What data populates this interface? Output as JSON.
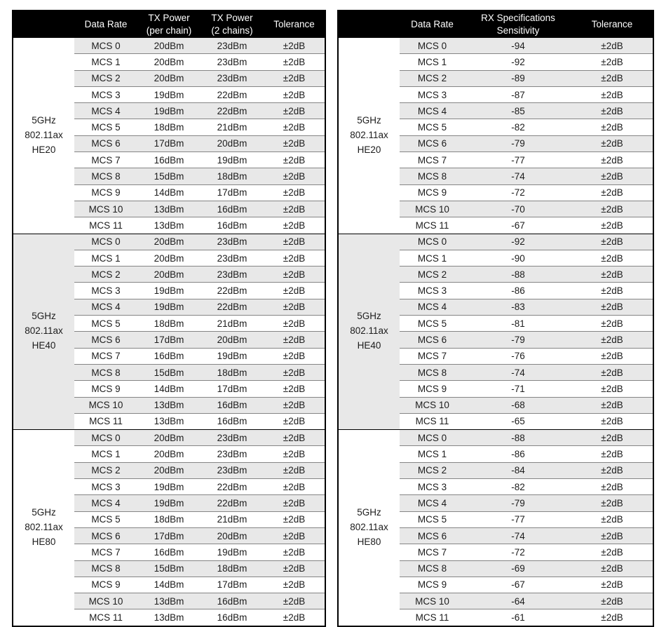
{
  "colors": {
    "header_bg": "#000000",
    "header_text": "#ffffff",
    "stripe": "#e8e8e8",
    "row_line": "#858585",
    "border": "#000000",
    "text": "#1c1c1c"
  },
  "tx_table": {
    "header": [
      "",
      "Data Rate",
      "TX Power\n(per chain)",
      "TX Power\n(2 chains)",
      "Tolerance"
    ],
    "groups": [
      {
        "band": "5GHz\n802.11ax\nHE20",
        "rows": [
          [
            "MCS 0",
            "20dBm",
            "23dBm",
            "±2dB"
          ],
          [
            "MCS 1",
            "20dBm",
            "23dBm",
            "±2dB"
          ],
          [
            "MCS 2",
            "20dBm",
            "23dBm",
            "±2dB"
          ],
          [
            "MCS 3",
            "19dBm",
            "22dBm",
            "±2dB"
          ],
          [
            "MCS 4",
            "19dBm",
            "22dBm",
            "±2dB"
          ],
          [
            "MCS 5",
            "18dBm",
            "21dBm",
            "±2dB"
          ],
          [
            "MCS 6",
            "17dBm",
            "20dBm",
            "±2dB"
          ],
          [
            "MCS 7",
            "16dBm",
            "19dBm",
            "±2dB"
          ],
          [
            "MCS 8",
            "15dBm",
            "18dBm",
            "±2dB"
          ],
          [
            "MCS 9",
            "14dBm",
            "17dBm",
            "±2dB"
          ],
          [
            "MCS 10",
            "13dBm",
            "16dBm",
            "±2dB"
          ],
          [
            "MCS 11",
            "13dBm",
            "16dBm",
            "±2dB"
          ]
        ]
      },
      {
        "band": "5GHz\n802.11ax\nHE40",
        "rows": [
          [
            "MCS 0",
            "20dBm",
            "23dBm",
            "±2dB"
          ],
          [
            "MCS 1",
            "20dBm",
            "23dBm",
            "±2dB"
          ],
          [
            "MCS 2",
            "20dBm",
            "23dBm",
            "±2dB"
          ],
          [
            "MCS 3",
            "19dBm",
            "22dBm",
            "±2dB"
          ],
          [
            "MCS 4",
            "19dBm",
            "22dBm",
            "±2dB"
          ],
          [
            "MCS 5",
            "18dBm",
            "21dBm",
            "±2dB"
          ],
          [
            "MCS 6",
            "17dBm",
            "20dBm",
            "±2dB"
          ],
          [
            "MCS 7",
            "16dBm",
            "19dBm",
            "±2dB"
          ],
          [
            "MCS 8",
            "15dBm",
            "18dBm",
            "±2dB"
          ],
          [
            "MCS 9",
            "14dBm",
            "17dBm",
            "±2dB"
          ],
          [
            "MCS 10",
            "13dBm",
            "16dBm",
            "±2dB"
          ],
          [
            "MCS 11",
            "13dBm",
            "16dBm",
            "±2dB"
          ]
        ]
      },
      {
        "band": "5GHz\n802.11ax\nHE80",
        "rows": [
          [
            "MCS 0",
            "20dBm",
            "23dBm",
            "±2dB"
          ],
          [
            "MCS 1",
            "20dBm",
            "23dBm",
            "±2dB"
          ],
          [
            "MCS 2",
            "20dBm",
            "23dBm",
            "±2dB"
          ],
          [
            "MCS 3",
            "19dBm",
            "22dBm",
            "±2dB"
          ],
          [
            "MCS 4",
            "19dBm",
            "22dBm",
            "±2dB"
          ],
          [
            "MCS 5",
            "18dBm",
            "21dBm",
            "±2dB"
          ],
          [
            "MCS 6",
            "17dBm",
            "20dBm",
            "±2dB"
          ],
          [
            "MCS 7",
            "16dBm",
            "19dBm",
            "±2dB"
          ],
          [
            "MCS 8",
            "15dBm",
            "18dBm",
            "±2dB"
          ],
          [
            "MCS 9",
            "14dBm",
            "17dBm",
            "±2dB"
          ],
          [
            "MCS 10",
            "13dBm",
            "16dBm",
            "±2dB"
          ],
          [
            "MCS 11",
            "13dBm",
            "16dBm",
            "±2dB"
          ]
        ]
      }
    ]
  },
  "rx_table": {
    "header": [
      "",
      "Data Rate",
      "RX Specifications\nSensitivity",
      "Tolerance"
    ],
    "groups": [
      {
        "band": "5GHz\n802.11ax\nHE20",
        "rows": [
          [
            "MCS 0",
            "-94",
            "±2dB"
          ],
          [
            "MCS 1",
            "-92",
            "±2dB"
          ],
          [
            "MCS 2",
            "-89",
            "±2dB"
          ],
          [
            "MCS 3",
            "-87",
            "±2dB"
          ],
          [
            "MCS 4",
            "-85",
            "±2dB"
          ],
          [
            "MCS 5",
            "-82",
            "±2dB"
          ],
          [
            "MCS 6",
            "-79",
            "±2dB"
          ],
          [
            "MCS 7",
            "-77",
            "±2dB"
          ],
          [
            "MCS 8",
            "-74",
            "±2dB"
          ],
          [
            "MCS 9",
            "-72",
            "±2dB"
          ],
          [
            "MCS 10",
            "-70",
            "±2dB"
          ],
          [
            "MCS 11",
            "-67",
            "±2dB"
          ]
        ]
      },
      {
        "band": "5GHz\n802.11ax\nHE40",
        "rows": [
          [
            "MCS 0",
            "-92",
            "±2dB"
          ],
          [
            "MCS 1",
            "-90",
            "±2dB"
          ],
          [
            "MCS 2",
            "-88",
            "±2dB"
          ],
          [
            "MCS 3",
            "-86",
            "±2dB"
          ],
          [
            "MCS 4",
            "-83",
            "±2dB"
          ],
          [
            "MCS 5",
            "-81",
            "±2dB"
          ],
          [
            "MCS 6",
            "-79",
            "±2dB"
          ],
          [
            "MCS 7",
            "-76",
            "±2dB"
          ],
          [
            "MCS 8",
            "-74",
            "±2dB"
          ],
          [
            "MCS 9",
            "-71",
            "±2dB"
          ],
          [
            "MCS 10",
            "-68",
            "±2dB"
          ],
          [
            "MCS 11",
            "-65",
            "±2dB"
          ]
        ]
      },
      {
        "band": "5GHz\n802.11ax\nHE80",
        "rows": [
          [
            "MCS 0",
            "-88",
            "±2dB"
          ],
          [
            "MCS 1",
            "-86",
            "±2dB"
          ],
          [
            "MCS 2",
            "-84",
            "±2dB"
          ],
          [
            "MCS 3",
            "-82",
            "±2dB"
          ],
          [
            "MCS 4",
            "-79",
            "±2dB"
          ],
          [
            "MCS 5",
            "-77",
            "±2dB"
          ],
          [
            "MCS 6",
            "-74",
            "±2dB"
          ],
          [
            "MCS 7",
            "-72",
            "±2dB"
          ],
          [
            "MCS 8",
            "-69",
            "±2dB"
          ],
          [
            "MCS 9",
            "-67",
            "±2dB"
          ],
          [
            "MCS 10",
            "-64",
            "±2dB"
          ],
          [
            "MCS 11",
            "-61",
            "±2dB"
          ]
        ]
      }
    ]
  }
}
